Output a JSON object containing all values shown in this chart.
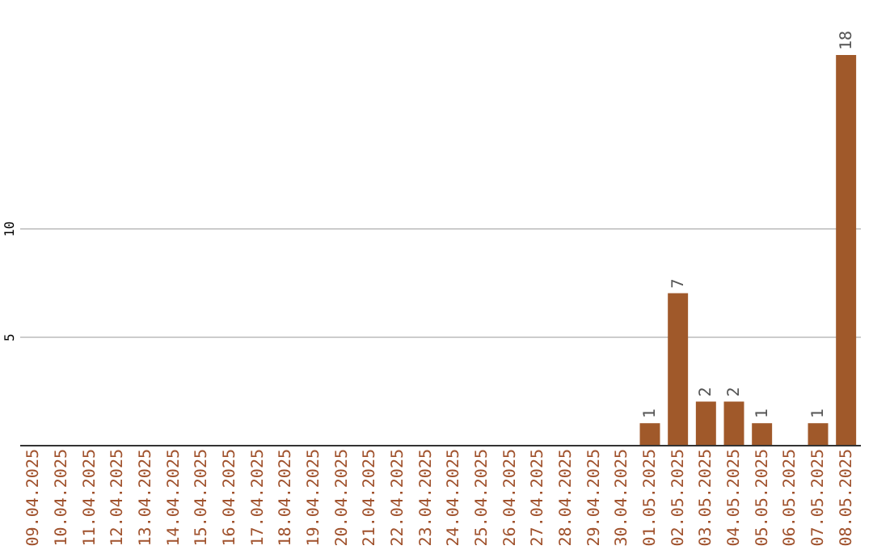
{
  "chart_data": {
    "type": "bar",
    "categories": [
      "09.04.2025",
      "10.04.2025",
      "11.04.2025",
      "12.04.2025",
      "13.04.2025",
      "14.04.2025",
      "15.04.2025",
      "16.04.2025",
      "17.04.2025",
      "18.04.2025",
      "19.04.2025",
      "20.04.2025",
      "21.04.2025",
      "22.04.2025",
      "23.04.2025",
      "24.04.2025",
      "25.04.2025",
      "26.04.2025",
      "27.04.2025",
      "28.04.2025",
      "29.04.2025",
      "30.04.2025",
      "01.05.2025",
      "02.05.2025",
      "03.05.2025",
      "04.05.2025",
      "05.05.2025",
      "06.05.2025",
      "07.05.2025",
      "08.05.2025"
    ],
    "values": [
      0,
      0,
      0,
      0,
      0,
      0,
      0,
      0,
      0,
      0,
      0,
      0,
      0,
      0,
      0,
      0,
      0,
      0,
      0,
      0,
      0,
      0,
      1,
      7,
      2,
      2,
      1,
      0,
      1,
      18
    ],
    "value_labels": [
      null,
      null,
      null,
      null,
      null,
      null,
      null,
      null,
      null,
      null,
      null,
      null,
      null,
      null,
      null,
      null,
      null,
      null,
      null,
      null,
      null,
      null,
      "1",
      "7",
      "2",
      "2",
      "1",
      null,
      "1",
      "18"
    ],
    "color": "#a0592a",
    "ylim": [
      0,
      18
    ],
    "yticks": [
      5,
      10
    ],
    "grid": "y"
  }
}
